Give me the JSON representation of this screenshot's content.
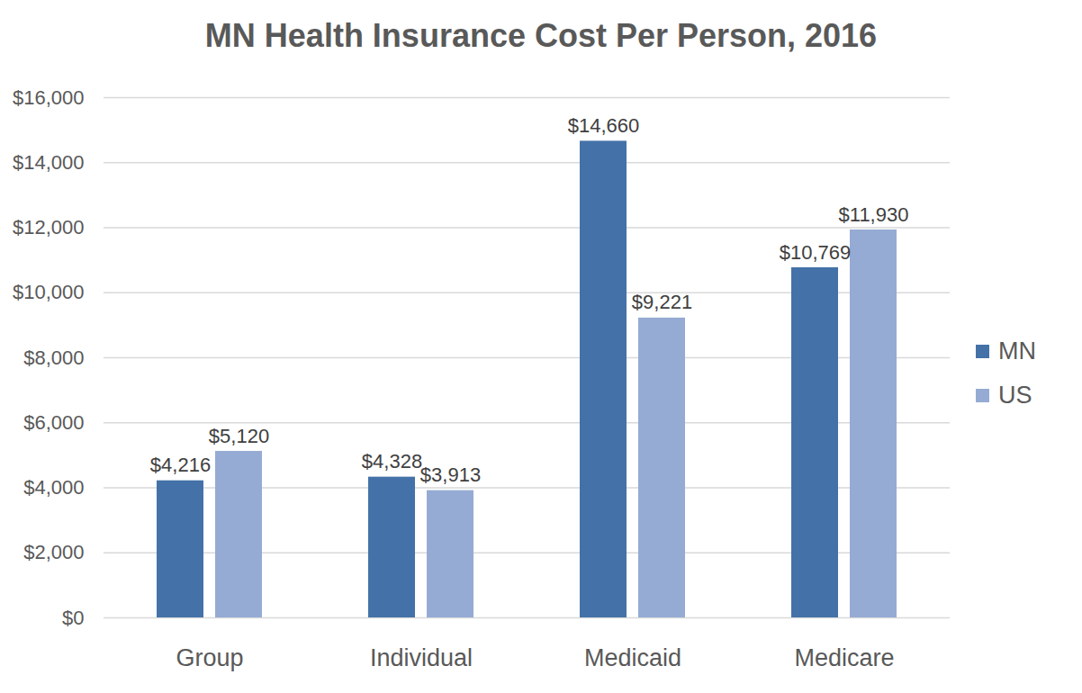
{
  "chart_data": {
    "type": "bar",
    "title": "MN Health Insurance Cost Per Person, 2016",
    "categories": [
      "Group",
      "Individual",
      "Medicaid",
      "Medicare"
    ],
    "series": [
      {
        "name": "MN",
        "color": "#4472a8",
        "values": [
          4216,
          4328,
          14660,
          10769
        ],
        "value_labels": [
          "$4,216",
          "$4,328",
          "$14,660",
          "$10,769"
        ]
      },
      {
        "name": "US",
        "color": "#95abd3",
        "values": [
          5120,
          3913,
          9221,
          11930
        ],
        "value_labels": [
          "$5,120",
          "$3,913",
          "$9,221",
          "$11,930"
        ]
      }
    ],
    "ylim": [
      0,
      16000
    ],
    "yticks": [
      {
        "value": 0,
        "label": "$0"
      },
      {
        "value": 2000,
        "label": "$2,000"
      },
      {
        "value": 4000,
        "label": "$4,000"
      },
      {
        "value": 6000,
        "label": "$6,000"
      },
      {
        "value": 8000,
        "label": "$8,000"
      },
      {
        "value": 10000,
        "label": "$10,000"
      },
      {
        "value": 12000,
        "label": "$12,000"
      },
      {
        "value": 14000,
        "label": "$14,000"
      },
      {
        "value": 16000,
        "label": "$16,000"
      }
    ],
    "grid": true,
    "legend": "right",
    "data_labels": true
  }
}
